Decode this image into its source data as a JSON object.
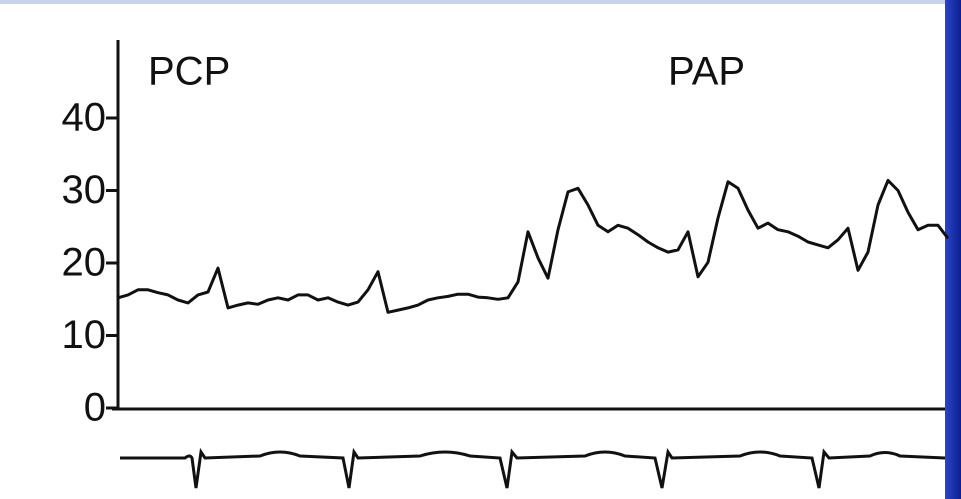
{
  "chart_data": {
    "type": "line",
    "annotations": [
      "PCP",
      "PAP"
    ],
    "ylim": [
      0,
      40
    ],
    "yticks": [
      0,
      10,
      20,
      30,
      40
    ],
    "color": "#111111",
    "values": [
      15.2,
      15.6,
      16.3,
      16.3,
      15.9,
      15.6,
      14.9,
      14.5,
      15.6,
      16.0,
      19.3,
      13.8,
      14.2,
      14.5,
      14.3,
      14.9,
      15.2,
      14.9,
      15.6,
      15.6,
      14.9,
      15.2,
      14.6,
      14.2,
      14.6,
      16.3,
      18.8,
      13.2,
      13.5,
      13.8,
      14.2,
      14.9,
      15.2,
      15.4,
      15.7,
      15.7,
      15.3,
      15.2,
      15.0,
      15.2,
      17.4,
      24.3,
      20.7,
      17.9,
      24.6,
      29.8,
      30.3,
      28.0,
      25.2,
      24.3,
      25.2,
      24.8,
      23.9,
      22.9,
      22.1,
      21.5,
      21.8,
      24.3,
      18.1,
      20.1,
      26.2,
      31.2,
      30.3,
      27.3,
      24.8,
      25.5,
      24.6,
      24.3,
      23.7,
      22.9,
      22.5,
      22.1,
      23.2,
      24.8,
      19.0,
      21.5,
      28.0,
      31.4,
      30.0,
      27.0,
      24.6,
      25.2,
      25.2,
      23.4
    ]
  }
}
